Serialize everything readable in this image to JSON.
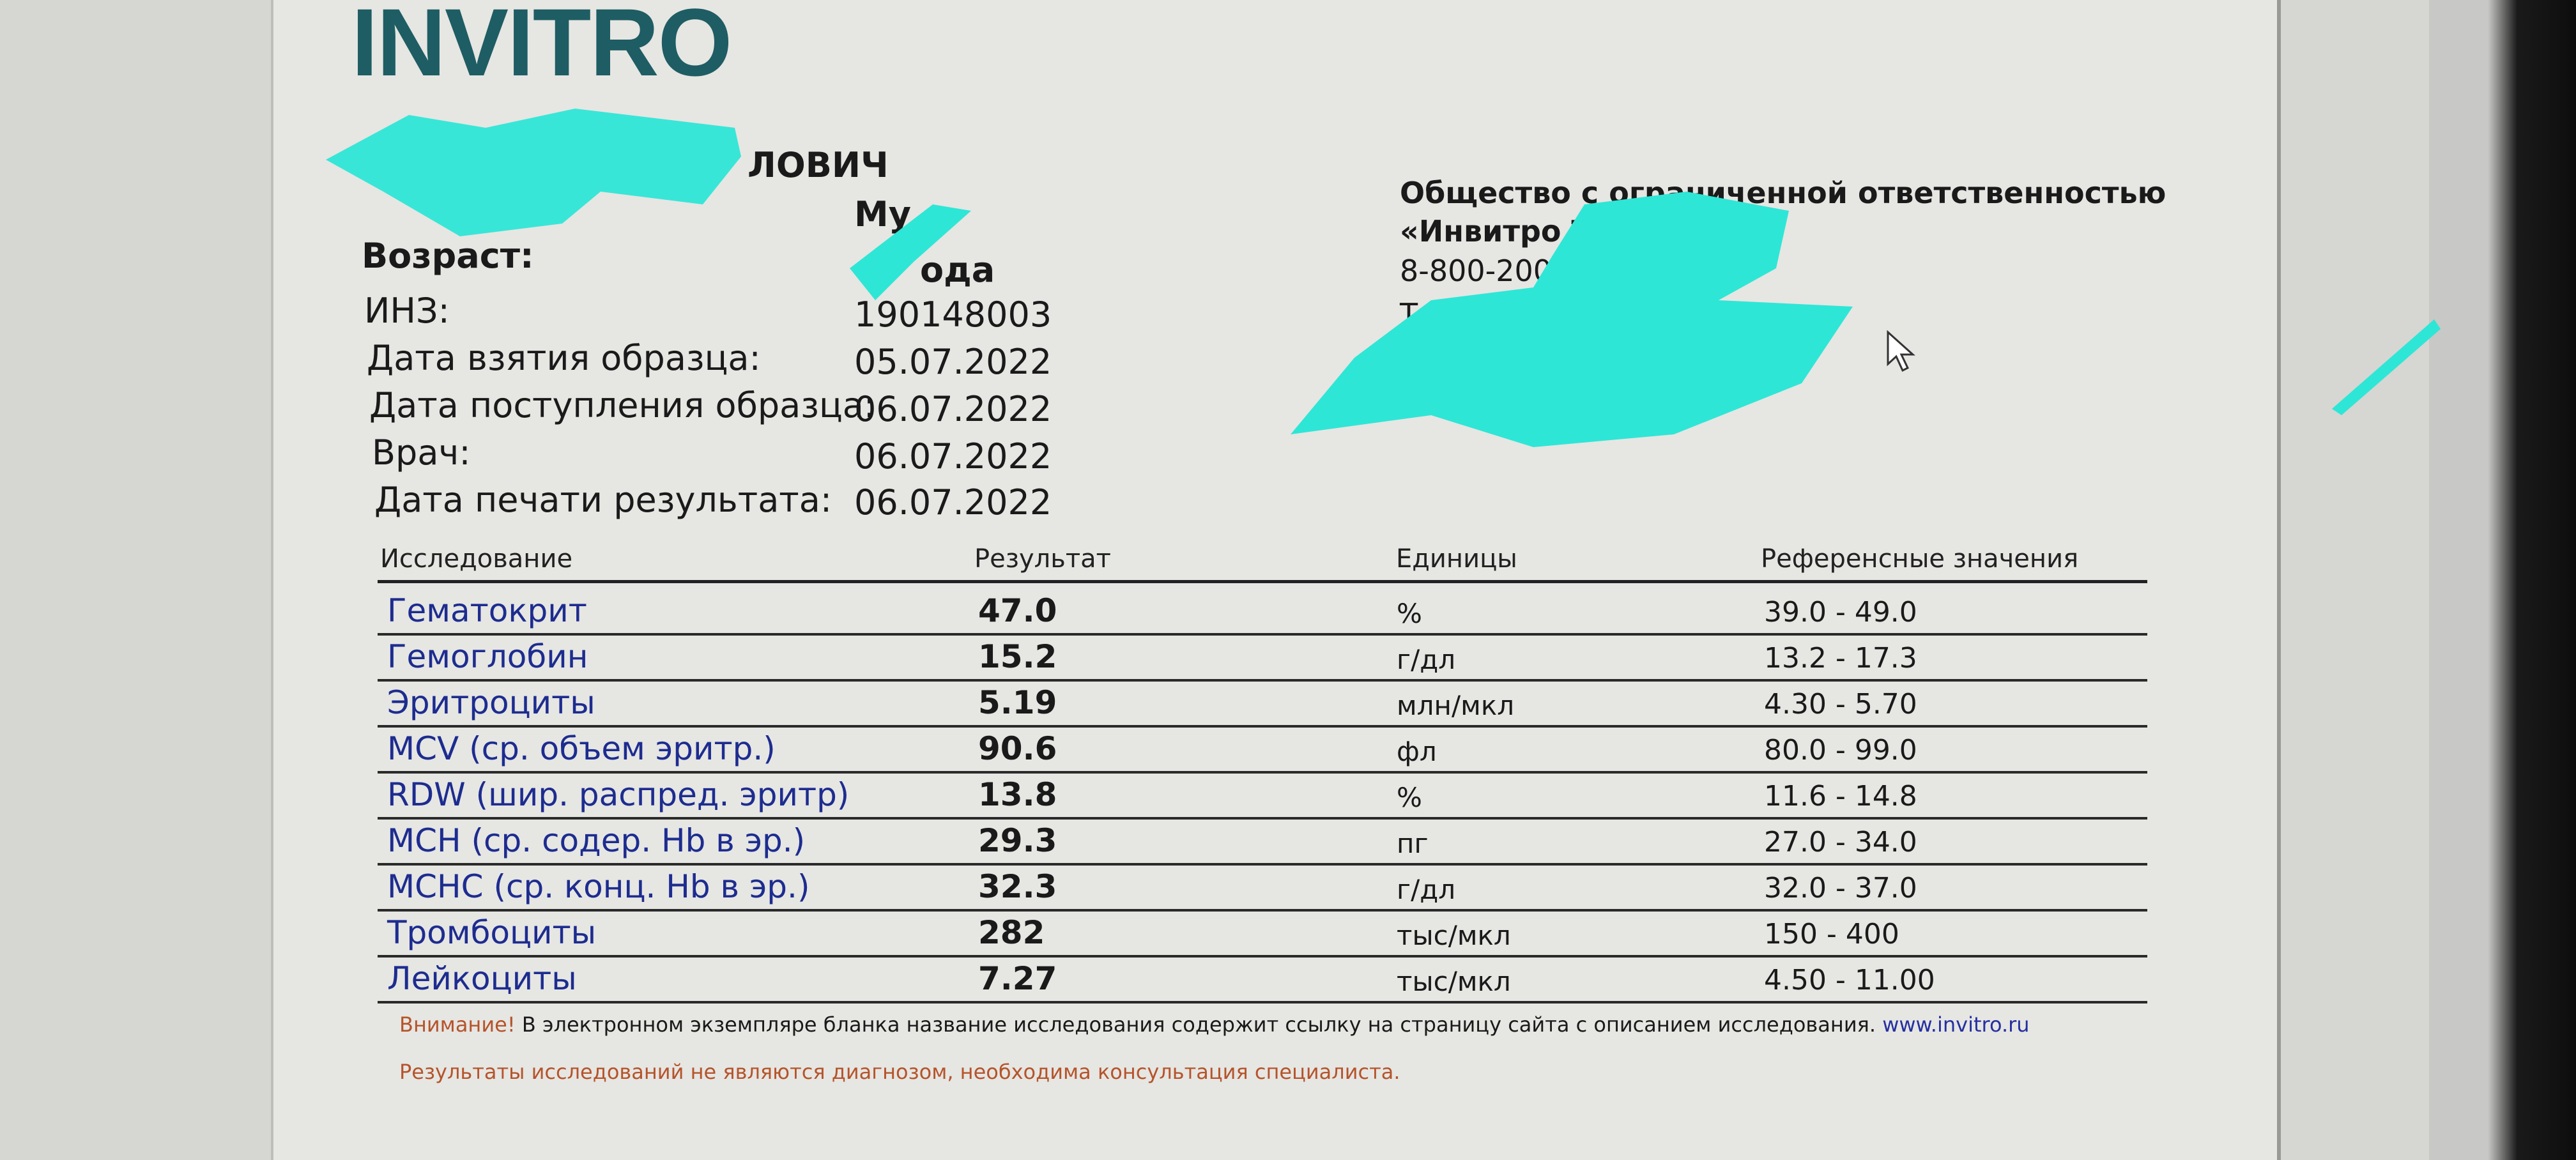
{
  "logo": "INVITRO",
  "patient": {
    "name_partial": "ЛОВИЧ",
    "sex_partial": "Му",
    "age_label": "Возраст:",
    "age_value_partial": "ода",
    "fields": [
      {
        "label": "ИНЗ:",
        "value": "190148003"
      },
      {
        "label": "Дата взятия образца:",
        "value": "05.07.2022"
      },
      {
        "label": "Дата поступления образца:",
        "value": "06.07.2022"
      },
      {
        "label": "Врач:",
        "value": "06.07.2022"
      },
      {
        "label": "Дата печати результата:",
        "value": "06.07.2022"
      }
    ]
  },
  "organization": {
    "line1": "Общество с ограниченной ответственностью",
    "line2_partial": "«Инвитро Т",
    "phone_partial": "8-800-200",
    "address_partial": "Т"
  },
  "table": {
    "headers": [
      "Исследование",
      "Результат",
      "Единицы",
      "Референсные значения"
    ],
    "rows": [
      {
        "name": "Гематокрит",
        "result": "47.0",
        "unit": "%",
        "ref": "39.0 - 49.0"
      },
      {
        "name": "Гемоглобин",
        "result": "15.2",
        "unit": "г/дл",
        "ref": "13.2 - 17.3"
      },
      {
        "name": "Эритроциты",
        "result": "5.19",
        "unit": "млн/мкл",
        "ref": "4.30 - 5.70"
      },
      {
        "name": "MCV (ср. объем эритр.)",
        "result": "90.6",
        "unit": "фл",
        "ref": "80.0 - 99.0"
      },
      {
        "name": "RDW (шир. распред. эритр)",
        "result": "13.8",
        "unit": "%",
        "ref": "11.6 - 14.8"
      },
      {
        "name": "MCH (ср. содер. Hb в эр.)",
        "result": "29.3",
        "unit": "пг",
        "ref": "27.0 - 34.0"
      },
      {
        "name": "MCHC (ср. конц. Hb в эр.)",
        "result": "32.3",
        "unit": "г/дл",
        "ref": "32.0 - 37.0"
      },
      {
        "name": "Тромбоциты",
        "result": "282",
        "unit": "тыс/мкл",
        "ref": "150 - 400"
      },
      {
        "name": "Лейкоциты",
        "result": "7.27",
        "unit": "тыс/мкл",
        "ref": "4.50 - 11.00"
      }
    ]
  },
  "footer": {
    "warning_label": "Внимание!",
    "warning_text": " В электронном экземпляре бланка название исследования содержит ссылку на страницу сайта с описанием исследования. ",
    "link": "www.invitro.ru",
    "disclaimer": "Результаты исследований не являются диагнозом, необходима консультация специалиста."
  },
  "colors": {
    "brand": "#1e5d63",
    "link": "#1d2c8f",
    "warning": "#b5542a",
    "redaction": "#2ee6d6"
  }
}
